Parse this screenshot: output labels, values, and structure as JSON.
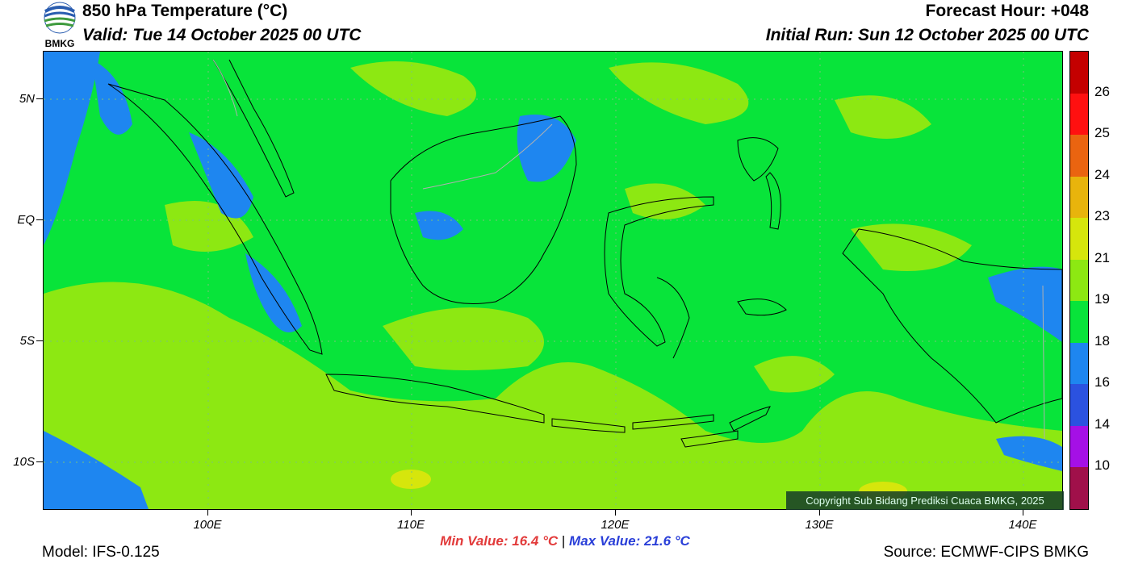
{
  "header": {
    "logo_text": "BMKG",
    "title": "850 hPa Temperature (°C)",
    "valid": "Valid: Tue 14 October 2025 00 UTC",
    "forecast_hour": "Forecast Hour: +048",
    "initial_run": "Initial Run: Sun 12 October 2025 00 UTC"
  },
  "map": {
    "lat_ticks": [
      "5N",
      "EQ",
      "5S",
      "10S"
    ],
    "lon_ticks": [
      "100E",
      "110E",
      "120E",
      "130E",
      "140E"
    ],
    "copyright": "Copyright Sub Bidang Prediksi Cuaca BMKG, 2025",
    "field_colors": {
      "below_14": "#2b52e0",
      "14_16": "#2b52e0",
      "16_18": "#1e86f0",
      "18_19": "#08e43a",
      "19_21": "#8de812",
      "21_23": "#d6e60c"
    }
  },
  "colorbar": {
    "labels": [
      "26",
      "25",
      "24",
      "23",
      "21",
      "19",
      "18",
      "16",
      "14",
      "10"
    ],
    "colors": [
      "#c40000",
      "#ff1010",
      "#ea6410",
      "#e8b40c",
      "#d6e60c",
      "#8de812",
      "#08e43a",
      "#1e86f0",
      "#2b52e0",
      "#a510e6",
      "#a0104a"
    ]
  },
  "stats": {
    "min_label": "Min Value: 16.4 °C",
    "separator": "|",
    "max_label": "Max Value: 21.6 °C"
  },
  "footer": {
    "model": "Model: IFS-0.125",
    "source": "Source: ECMWF-CIPS BMKG"
  }
}
